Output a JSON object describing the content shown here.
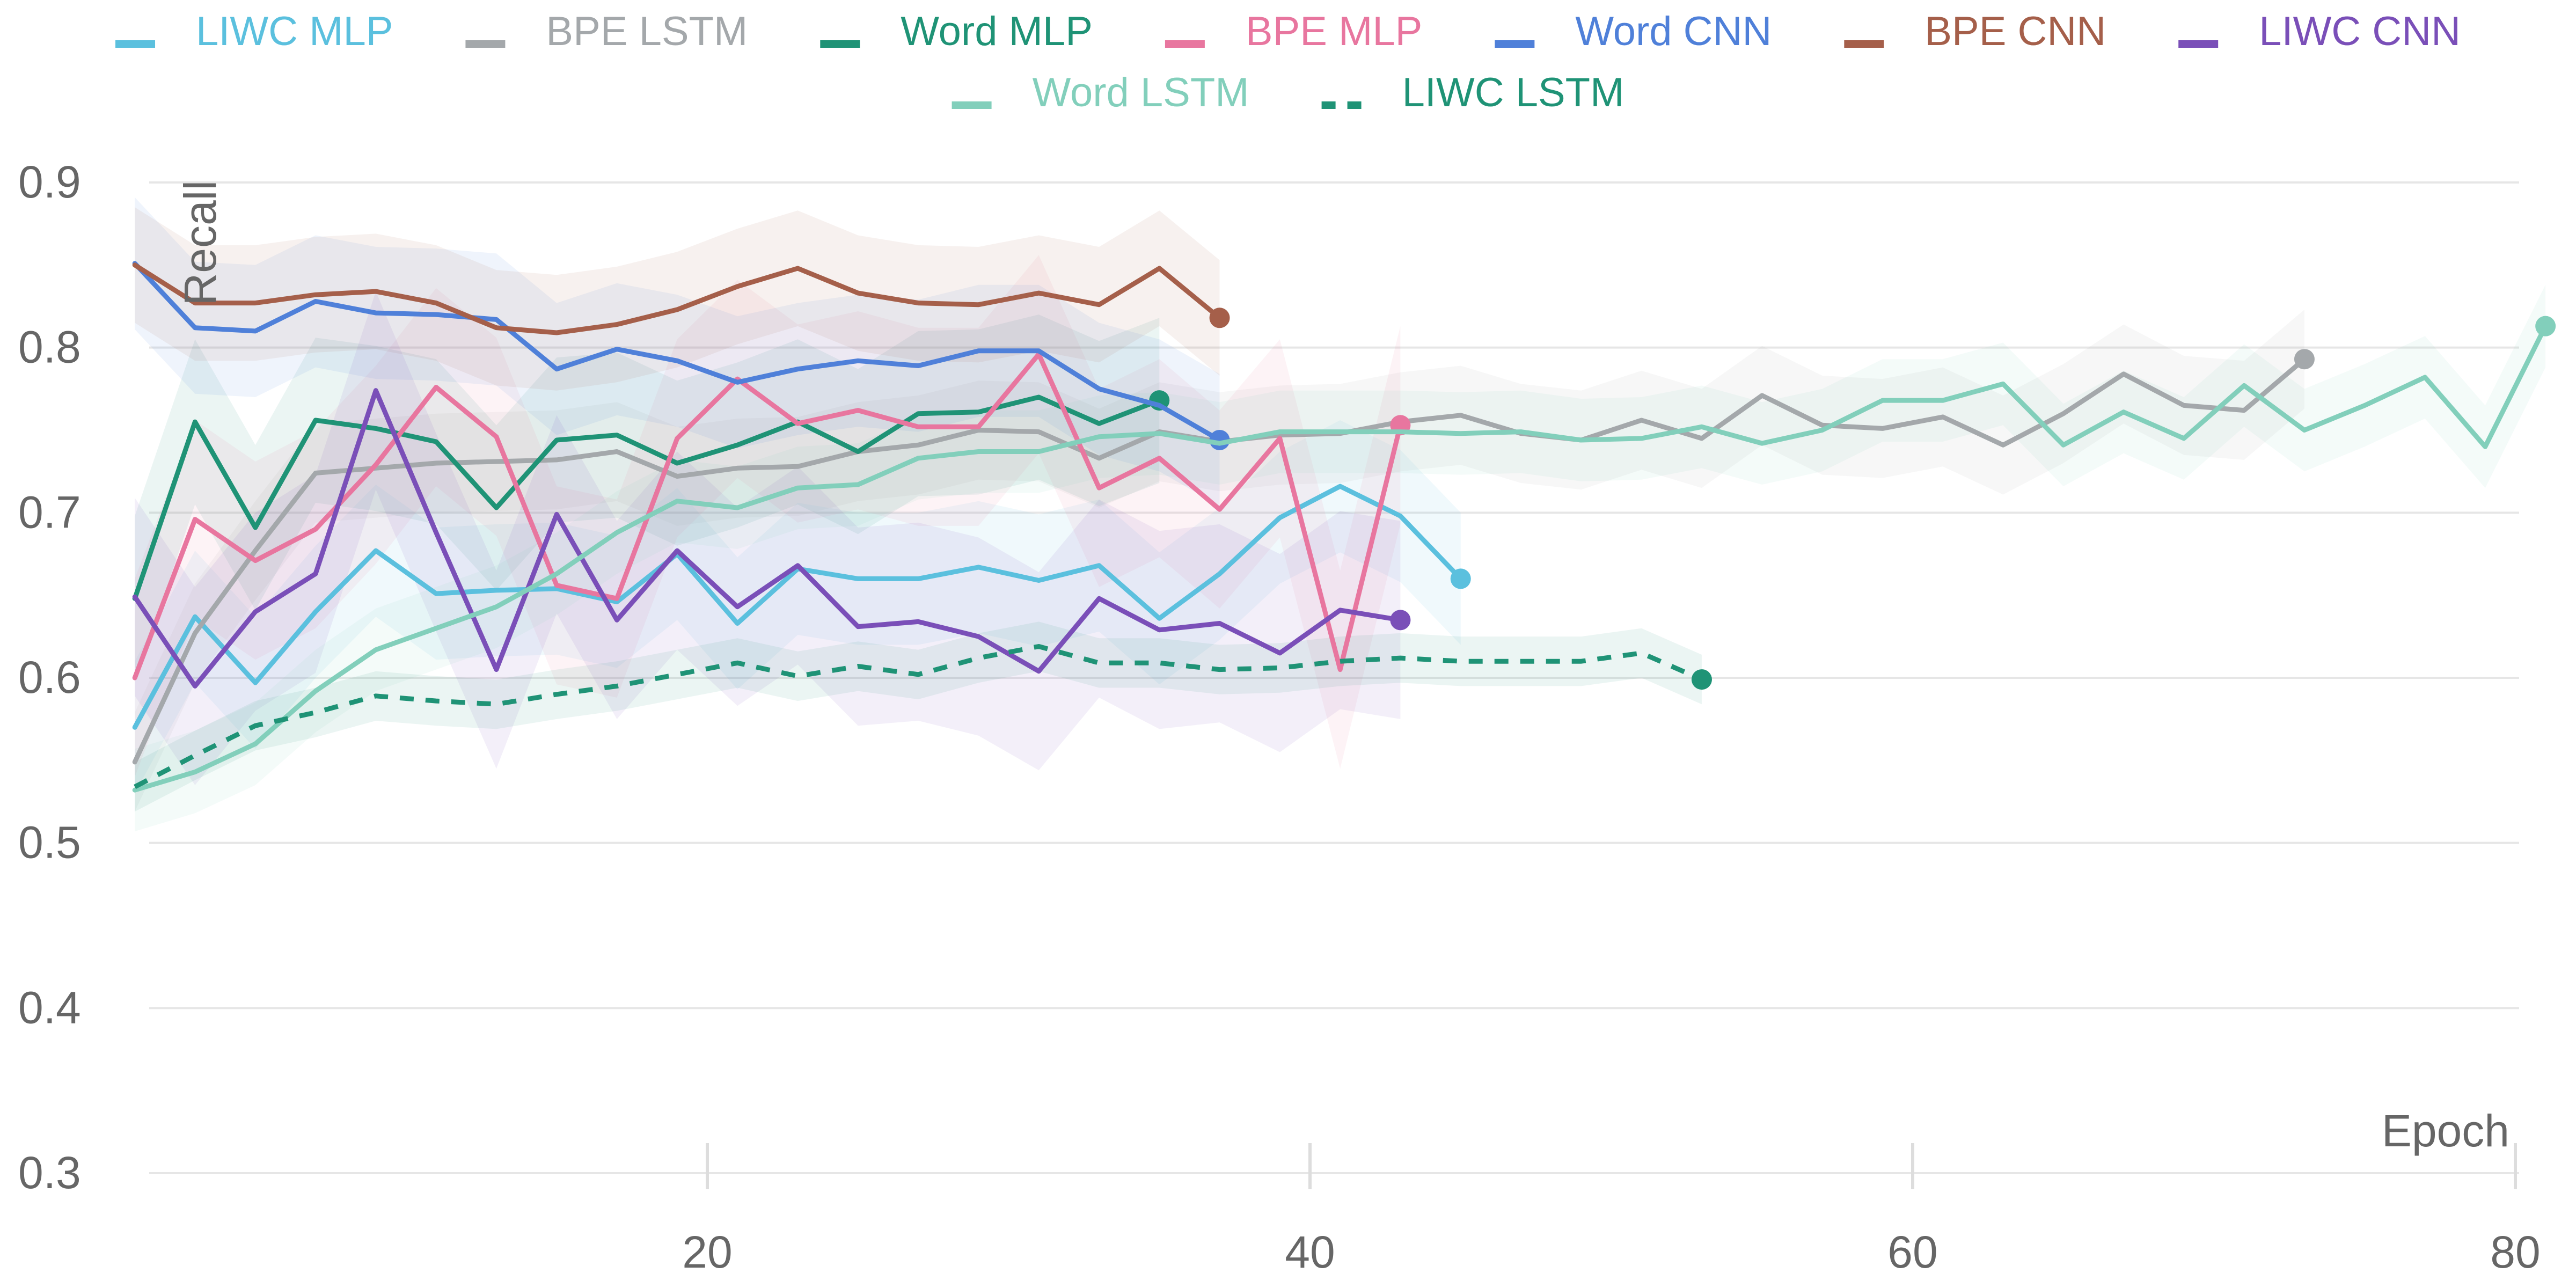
{
  "chart_data": {
    "type": "line",
    "xlabel": "Epoch",
    "ylabel": "Recall",
    "xlim": [
      0,
      80
    ],
    "ylim": [
      0.3,
      0.9
    ],
    "x_ticks": [
      20,
      40,
      60,
      80
    ],
    "y_ticks": [
      0.3,
      0.4,
      0.5,
      0.6,
      0.7,
      0.8,
      0.9
    ],
    "grid": "horizontal",
    "legend_position": "top",
    "series": [
      {
        "name": "LIWC MLP",
        "color": "#5bc0de",
        "dashed": false,
        "x": [
          1,
          3,
          5,
          7,
          9,
          11,
          13,
          15,
          17,
          19,
          21,
          23,
          25,
          27,
          29,
          31,
          33,
          35,
          37,
          39,
          41,
          43,
          45
        ],
        "y": [
          0.57,
          0.637,
          0.597,
          0.64,
          0.677,
          0.651,
          0.653,
          0.654,
          0.646,
          0.675,
          0.633,
          0.666,
          0.66,
          0.66,
          0.667,
          0.659,
          0.668,
          0.636,
          0.663,
          0.697,
          0.716,
          0.698,
          0.66
        ],
        "band": 0.04
      },
      {
        "name": "BPE LSTM",
        "color": "#a4a8ab",
        "dashed": false,
        "x": [
          1,
          3,
          5,
          7,
          9,
          11,
          13,
          15,
          17,
          19,
          21,
          23,
          25,
          27,
          29,
          31,
          33,
          35,
          37,
          39,
          41,
          43,
          45,
          47,
          49,
          51,
          53,
          55,
          57,
          59,
          61,
          63,
          65,
          67,
          69,
          71,
          73
        ],
        "y": [
          0.549,
          0.627,
          0.677,
          0.724,
          0.727,
          0.73,
          0.731,
          0.732,
          0.737,
          0.722,
          0.727,
          0.728,
          0.737,
          0.741,
          0.75,
          0.749,
          0.733,
          0.749,
          0.743,
          0.747,
          0.748,
          0.755,
          0.759,
          0.748,
          0.744,
          0.756,
          0.745,
          0.771,
          0.753,
          0.751,
          0.758,
          0.741,
          0.76,
          0.784,
          0.765,
          0.762,
          0.793
        ],
        "band": 0.03
      },
      {
        "name": "Word MLP",
        "color": "#1f9376",
        "dashed": false,
        "x": [
          1,
          3,
          5,
          7,
          9,
          11,
          13,
          15,
          17,
          19,
          21,
          23,
          25,
          27,
          29,
          31,
          33,
          35
        ],
        "y": [
          0.648,
          0.755,
          0.691,
          0.756,
          0.751,
          0.743,
          0.703,
          0.744,
          0.747,
          0.73,
          0.741,
          0.755,
          0.737,
          0.76,
          0.761,
          0.77,
          0.754,
          0.768
        ],
        "band": 0.05
      },
      {
        "name": "BPE MLP",
        "color": "#e8769f",
        "dashed": false,
        "x": [
          1,
          3,
          5,
          7,
          9,
          11,
          13,
          15,
          17,
          19,
          21,
          23,
          25,
          27,
          29,
          31,
          33,
          35,
          37,
          39,
          41,
          43
        ],
        "y": [
          0.6,
          0.696,
          0.671,
          0.69,
          0.729,
          0.776,
          0.746,
          0.656,
          0.648,
          0.745,
          0.781,
          0.754,
          0.762,
          0.752,
          0.752,
          0.796,
          0.715,
          0.733,
          0.702,
          0.745,
          0.605,
          0.753
        ],
        "band": 0.06
      },
      {
        "name": "Word CNN",
        "color": "#4f80d9",
        "dashed": false,
        "x": [
          1,
          3,
          5,
          7,
          9,
          11,
          13,
          15,
          17,
          19,
          21,
          23,
          25,
          27,
          29,
          31,
          33,
          35,
          37
        ],
        "y": [
          0.851,
          0.812,
          0.81,
          0.828,
          0.821,
          0.82,
          0.817,
          0.787,
          0.799,
          0.792,
          0.779,
          0.787,
          0.792,
          0.789,
          0.798,
          0.798,
          0.775,
          0.765,
          0.744
        ],
        "band": 0.04
      },
      {
        "name": "BPE CNN",
        "color": "#a55f4a",
        "dashed": false,
        "x": [
          1,
          3,
          5,
          7,
          9,
          11,
          13,
          15,
          17,
          19,
          21,
          23,
          25,
          27,
          29,
          31,
          33,
          35,
          37
        ],
        "y": [
          0.85,
          0.827,
          0.827,
          0.832,
          0.834,
          0.827,
          0.812,
          0.809,
          0.814,
          0.823,
          0.837,
          0.848,
          0.833,
          0.827,
          0.826,
          0.833,
          0.826,
          0.848,
          0.818
        ],
        "band": 0.035
      },
      {
        "name": "LIWC CNN",
        "color": "#7a4fb8",
        "dashed": false,
        "x": [
          1,
          3,
          5,
          7,
          9,
          11,
          13,
          15,
          17,
          19,
          21,
          23,
          25,
          27,
          29,
          31,
          33,
          35,
          37,
          39,
          41,
          43
        ],
        "y": [
          0.649,
          0.595,
          0.64,
          0.663,
          0.774,
          0.688,
          0.605,
          0.699,
          0.635,
          0.677,
          0.643,
          0.668,
          0.631,
          0.634,
          0.625,
          0.604,
          0.648,
          0.629,
          0.633,
          0.615,
          0.641,
          0.635
        ],
        "band": 0.06
      },
      {
        "name": "Word LSTM",
        "color": "#82cfbb",
        "dashed": false,
        "x": [
          1,
          3,
          5,
          7,
          9,
          11,
          13,
          15,
          17,
          19,
          21,
          23,
          25,
          27,
          29,
          31,
          33,
          35,
          37,
          39,
          41,
          43,
          45,
          47,
          49,
          51,
          53,
          55,
          57,
          59,
          61,
          63,
          65,
          67,
          69,
          71,
          73,
          75,
          77,
          79,
          81
        ],
        "y": [
          0.532,
          0.543,
          0.56,
          0.592,
          0.617,
          0.63,
          0.643,
          0.663,
          0.688,
          0.707,
          0.703,
          0.715,
          0.717,
          0.733,
          0.737,
          0.737,
          0.746,
          0.748,
          0.742,
          0.749,
          0.749,
          0.749,
          0.748,
          0.749,
          0.744,
          0.745,
          0.752,
          0.742,
          0.75,
          0.768,
          0.768,
          0.778,
          0.741,
          0.761,
          0.745,
          0.777,
          0.75,
          0.765,
          0.782,
          0.74,
          0.813
        ],
        "band": 0.025
      },
      {
        "name": "LIWC LSTM",
        "color": "#1f9376",
        "dashed": true,
        "x": [
          1,
          3,
          5,
          7,
          9,
          11,
          13,
          15,
          17,
          19,
          21,
          23,
          25,
          27,
          29,
          31,
          33,
          35,
          37,
          39,
          41,
          43,
          45,
          47,
          49,
          51,
          53
        ],
        "y": [
          0.534,
          0.553,
          0.571,
          0.579,
          0.589,
          0.586,
          0.584,
          0.59,
          0.595,
          0.602,
          0.609,
          0.601,
          0.607,
          0.602,
          0.612,
          0.619,
          0.609,
          0.609,
          0.605,
          0.606,
          0.61,
          0.612,
          0.61,
          0.61,
          0.61,
          0.615,
          0.599
        ],
        "band": 0.015
      }
    ]
  }
}
